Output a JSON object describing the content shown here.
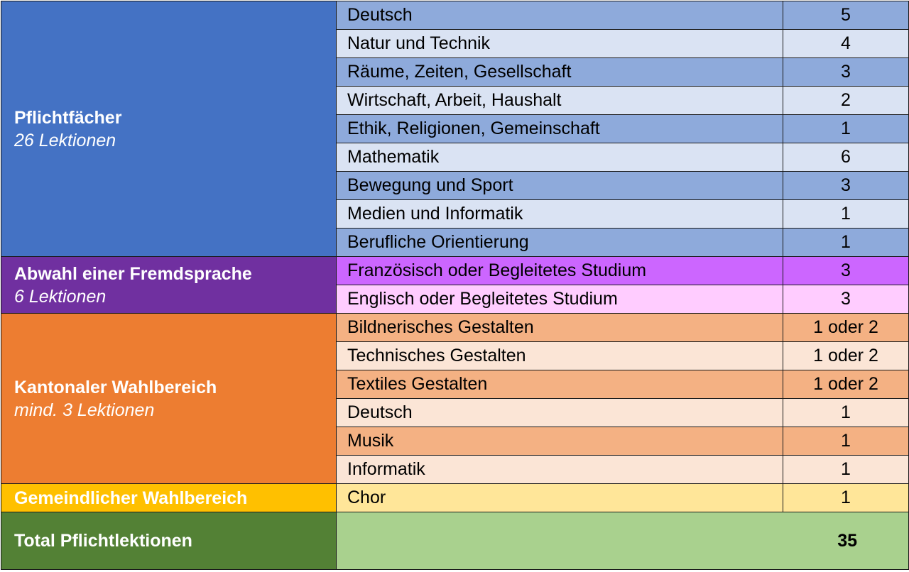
{
  "groups": [
    {
      "title": "Pflichtfächer",
      "subtitle": "26 Lektionen",
      "rows": [
        {
          "subject": "Deutsch",
          "lessons": "5"
        },
        {
          "subject": "Natur und Technik",
          "lessons": "4"
        },
        {
          "subject": "Räume, Zeiten, Gesellschaft",
          "lessons": "3"
        },
        {
          "subject": "Wirtschaft, Arbeit, Haushalt",
          "lessons": "2"
        },
        {
          "subject": "Ethik, Religionen, Gemeinschaft",
          "lessons": "1"
        },
        {
          "subject": "Mathematik",
          "lessons": "6"
        },
        {
          "subject": "Bewegung und Sport",
          "lessons": "3"
        },
        {
          "subject": "Medien und Informatik",
          "lessons": "1"
        },
        {
          "subject": "Berufliche Orientierung",
          "lessons": "1"
        }
      ]
    },
    {
      "title": "Abwahl einer Fremdsprache",
      "subtitle": "6 Lektionen",
      "rows": [
        {
          "subject": "Französisch oder Begleitetes Studium",
          "lessons": "3"
        },
        {
          "subject": "Englisch oder Begleitetes Studium",
          "lessons": "3"
        }
      ]
    },
    {
      "title": "Kantonaler Wahlbereich",
      "subtitle": "mind. 3 Lektionen",
      "rows": [
        {
          "subject": "Bildnerisches Gestalten",
          "lessons": "1 oder 2"
        },
        {
          "subject": "Technisches Gestalten",
          "lessons": "1 oder 2"
        },
        {
          "subject": "Textiles Gestalten",
          "lessons": "1 oder 2"
        },
        {
          "subject": "Deutsch",
          "lessons": "1"
        },
        {
          "subject": "Musik",
          "lessons": "1"
        },
        {
          "subject": "Informatik",
          "lessons": "1"
        }
      ]
    },
    {
      "title": "Gemeindlicher Wahlbereich",
      "rows": [
        {
          "subject": "Chor",
          "lessons": "1"
        }
      ]
    }
  ],
  "total": {
    "label": "Total Pflichtlektionen",
    "value": "35"
  },
  "colors": {
    "pflicht": "#4472c4",
    "fremdsprache": "#7030a0",
    "kantonal": "#ed7d31",
    "gemeindlich": "#ffc000",
    "total": "#538135"
  }
}
